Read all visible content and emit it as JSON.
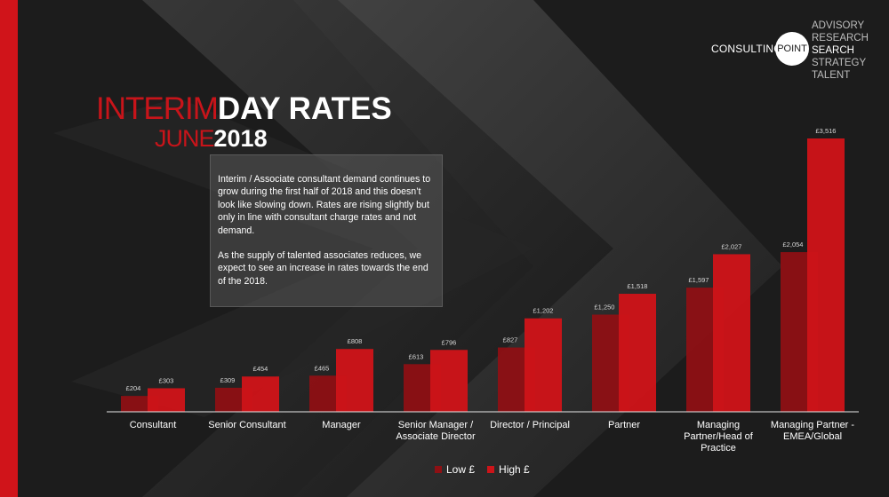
{
  "branding": {
    "company": "CONSULTING",
    "circle_text": "POINT",
    "services": [
      "ADVISORY",
      "RESEARCH",
      "SEARCH",
      "STRATEGY",
      "TALENT"
    ],
    "highlighted_service": "SEARCH"
  },
  "title": {
    "interim": "INTERIM",
    "day_rates": "DAY RATES",
    "month": "JUNE",
    "year": "2018"
  },
  "description": {
    "paragraph1": "Interim / Associate consultant demand continues to grow during the first half of 2018 and this doesn’t look like slowing down.  Rates are rising slightly but only in line with consultant charge rates and not demand.",
    "paragraph2": "As the supply of talented associates reduces, we expect to see an increase in rates towards the end of the 2018."
  },
  "colors": {
    "accent_red": "#d0141a",
    "low_series": "#8e1014",
    "high_series": "#cc1419",
    "background": "#1c1c1c"
  },
  "chart_data": {
    "type": "bar",
    "categories": [
      [
        "Consultant"
      ],
      [
        "Senior Consultant"
      ],
      [
        "Manager"
      ],
      [
        "Senior Manager /",
        "Associate Director"
      ],
      [
        "Director / Principal"
      ],
      [
        "Partner"
      ],
      [
        "Managing",
        "Partner/Head of",
        "Practice"
      ],
      [
        "Managing Partner -",
        "EMEA/Global"
      ]
    ],
    "series": [
      {
        "name": "Low £",
        "values": [
          204,
          309,
          465,
          613,
          827,
          1250,
          1597,
          2054
        ],
        "labels": [
          "£204",
          "£309",
          "£465",
          "£613",
          "£827",
          "£1,250",
          "£1,597",
          "£2,054"
        ],
        "color": "#8e1014"
      },
      {
        "name": "High £",
        "values": [
          303,
          454,
          808,
          796,
          1202,
          1518,
          2027,
          3516
        ],
        "labels": [
          "£303",
          "£454",
          "£808",
          "£796",
          "£1,202",
          "£1,518",
          "£2,027",
          "£3,516"
        ],
        "color": "#cc1419"
      }
    ],
    "ylim": [
      0,
      3516
    ],
    "legend_position": "bottom-center",
    "grid": false
  }
}
